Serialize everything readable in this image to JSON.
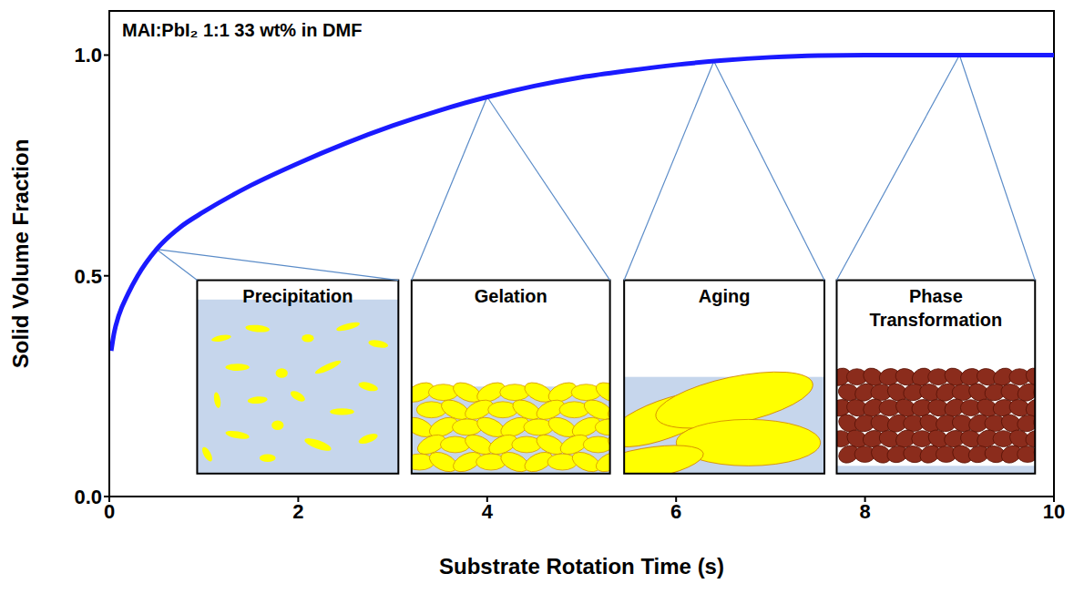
{
  "chart_data": {
    "type": "line",
    "annotation": "MAI:PbI₂ 1:1 33 wt% in DMF",
    "x_label": "Substrate Rotation Time (s)",
    "y_label": "Solid Volume Fraction",
    "x": [
      0.02,
      0.05,
      0.1,
      0.2,
      0.3,
      0.5,
      0.75,
      1,
      1.5,
      2,
      2.5,
      3,
      3.5,
      4,
      4.5,
      5,
      5.5,
      6,
      6.5,
      7,
      7.5,
      8,
      9,
      10
    ],
    "values": [
      0.33,
      0.37,
      0.41,
      0.46,
      0.5,
      0.56,
      0.61,
      0.645,
      0.705,
      0.755,
      0.8,
      0.84,
      0.875,
      0.905,
      0.93,
      0.95,
      0.965,
      0.978,
      0.988,
      0.995,
      0.999,
      1.0,
      1.0,
      1.0
    ],
    "color": "#1a1aff",
    "stages": [
      {
        "label": "Precipitation",
        "x": 0.5,
        "y": 0.56
      },
      {
        "label": "Gelation",
        "x": 4,
        "y": 0.905
      },
      {
        "label": "Aging",
        "x": 6.4,
        "y": 0.986
      },
      {
        "label": "Phase Transformation",
        "x": 9,
        "y": 1.0
      }
    ],
    "xlim": [
      0,
      10
    ],
    "xticks": [
      0,
      2,
      4,
      6,
      8,
      10
    ],
    "ylim": [
      0,
      1.1
    ],
    "yticks": [
      {
        "value": 0,
        "label": "0.0"
      },
      {
        "value": 0.5,
        "label": "0.5"
      },
      {
        "value": 1,
        "label": "1.0"
      }
    ],
    "grid": false
  }
}
